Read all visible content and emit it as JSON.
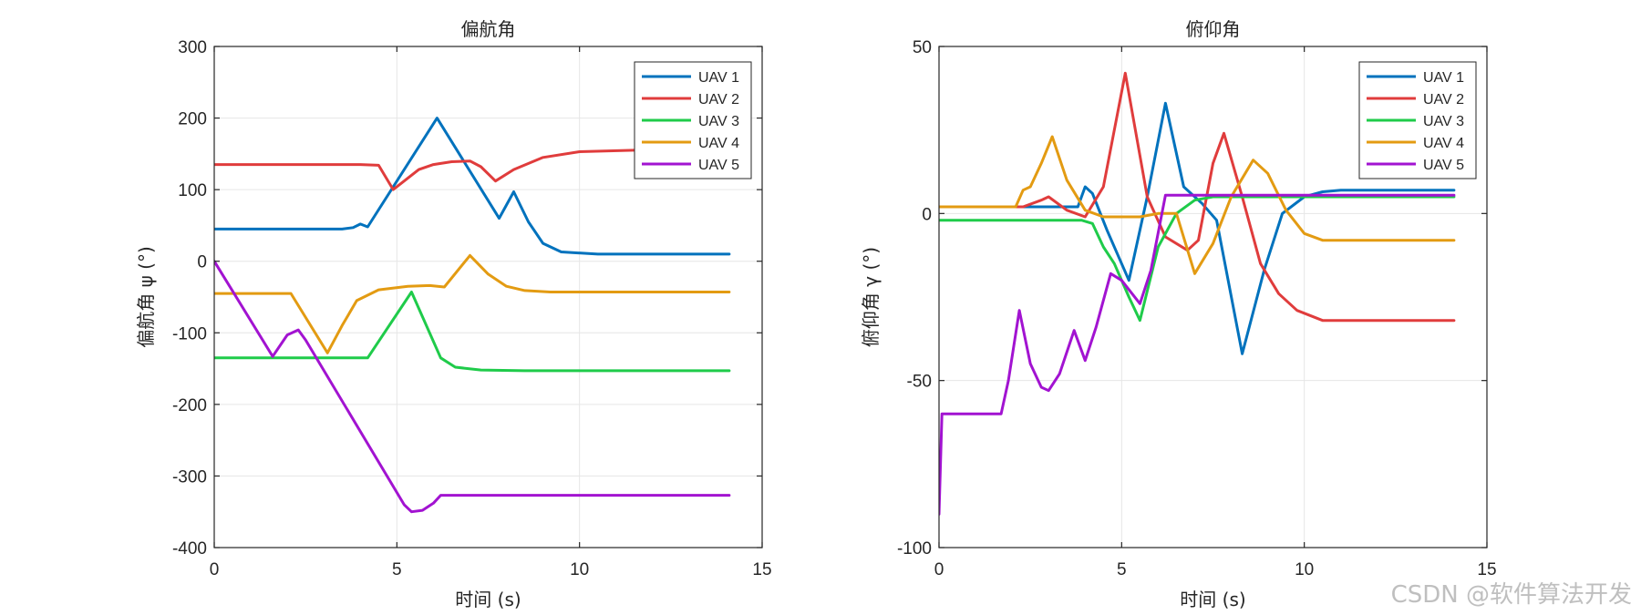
{
  "watermark": "CSDN @软件算法开发",
  "colors": {
    "UAV 1": "#0072BD",
    "UAV 2": "#E03C3C",
    "UAV 3": "#1FCB4A",
    "UAV 4": "#E39B12",
    "UAV 5": "#A213D1"
  },
  "chart_data": [
    {
      "type": "line",
      "title": "偏航角",
      "xlabel": "时间 (s)",
      "ylabel": "偏航角 ψ (°)",
      "xlim": [
        0,
        15
      ],
      "ylim": [
        -400,
        300
      ],
      "xticks": [
        0,
        5,
        10,
        15
      ],
      "yticks": [
        -400,
        -300,
        -200,
        -100,
        0,
        100,
        200,
        300
      ],
      "grid": true,
      "legend": "top-right",
      "series": [
        {
          "name": "UAV 1",
          "x": [
            0,
            3.5,
            3.8,
            4.0,
            4.2,
            6.1,
            7.8,
            8.2,
            8.6,
            9.0,
            9.5,
            10.5,
            14.1
          ],
          "y": [
            45,
            45,
            47,
            52,
            48,
            200,
            60,
            97,
            55,
            25,
            13,
            10,
            10
          ]
        },
        {
          "name": "UAV 2",
          "x": [
            0,
            4.0,
            4.5,
            4.9,
            5.2,
            5.6,
            6.0,
            6.5,
            7.0,
            7.3,
            7.7,
            8.2,
            9.0,
            10.0,
            11.5,
            14.1
          ],
          "y": [
            135,
            135,
            134,
            100,
            112,
            128,
            135,
            139,
            140,
            132,
            112,
            128,
            145,
            153,
            155,
            155
          ]
        },
        {
          "name": "UAV 3",
          "x": [
            0,
            4.2,
            5.4,
            6.2,
            6.6,
            7.3,
            8.5,
            14.1
          ],
          "y": [
            -135,
            -135,
            -43,
            -135,
            -148,
            -152,
            -153,
            -153
          ]
        },
        {
          "name": "UAV 4",
          "x": [
            0,
            2.1,
            3.1,
            3.5,
            3.9,
            4.5,
            5.3,
            5.9,
            6.3,
            7.0,
            7.5,
            8.0,
            8.5,
            9.2,
            14.1
          ],
          "y": [
            -45,
            -45,
            -128,
            -90,
            -55,
            -40,
            -35,
            -34,
            -36,
            8,
            -18,
            -35,
            -41,
            -43,
            -43
          ]
        },
        {
          "name": "UAV 5",
          "x": [
            0,
            1.6,
            2.0,
            2.3,
            2.5,
            5.2,
            5.4,
            5.7,
            6.0,
            6.2,
            14.1
          ],
          "y": [
            0,
            -133,
            -103,
            -96,
            -110,
            -340,
            -350,
            -348,
            -338,
            -327,
            -327
          ]
        }
      ]
    },
    {
      "type": "line",
      "title": "俯仰角",
      "xlabel": "时间 (s)",
      "ylabel": "俯仰角 γ (°)",
      "xlim": [
        0,
        15
      ],
      "ylim": [
        -100,
        50
      ],
      "xticks": [
        0,
        5,
        10,
        15
      ],
      "yticks": [
        -100,
        -50,
        0,
        50
      ],
      "grid": true,
      "legend": "top-right",
      "series": [
        {
          "name": "UAV 1",
          "x": [
            0,
            3.4,
            3.8,
            4.0,
            4.2,
            4.6,
            5.2,
            5.7,
            6.2,
            6.7,
            7.2,
            7.6,
            8.3,
            8.9,
            9.4,
            10.0,
            10.5,
            11.0,
            12.0,
            14.1
          ],
          "y": [
            2,
            2,
            2,
            8,
            6,
            -5,
            -20,
            5,
            33,
            8,
            3,
            -2,
            -42,
            -17,
            0,
            5,
            6.5,
            7,
            7,
            7
          ]
        },
        {
          "name": "UAV 2",
          "x": [
            0,
            2.3,
            2.8,
            3.0,
            3.5,
            4.0,
            4.5,
            5.1,
            5.7,
            6.2,
            6.8,
            7.1,
            7.5,
            7.8,
            8.3,
            8.8,
            9.3,
            9.8,
            10.5,
            14.1
          ],
          "y": [
            2,
            2,
            4,
            5,
            1,
            -1,
            8,
            42,
            5,
            -7,
            -11,
            -8,
            15,
            24,
            5,
            -15,
            -24,
            -29,
            -32,
            -32
          ]
        },
        {
          "name": "UAV 3",
          "x": [
            0,
            3.9,
            4.2,
            4.5,
            4.8,
            5.2,
            5.5,
            6.0,
            6.5,
            7.0,
            7.5,
            14.1
          ],
          "y": [
            -2,
            -2,
            -3,
            -10,
            -15,
            -25,
            -32,
            -10,
            0,
            4,
            5,
            5
          ]
        },
        {
          "name": "UAV 4",
          "x": [
            0,
            2.1,
            2.3,
            2.5,
            2.8,
            3.1,
            3.5,
            4.0,
            4.5,
            5.0,
            5.5,
            6.0,
            6.5,
            7.0,
            7.5,
            8.0,
            8.6,
            9.0,
            9.5,
            10.0,
            10.5,
            14.1
          ],
          "y": [
            2,
            2,
            7,
            8,
            15,
            23,
            10,
            1,
            -1,
            -1,
            -1,
            0,
            0,
            -18,
            -9,
            5,
            16,
            12,
            1,
            -6,
            -8,
            -8
          ]
        },
        {
          "name": "UAV 5",
          "x": [
            0,
            0.08,
            1.7,
            1.9,
            2.2,
            2.5,
            2.8,
            3.0,
            3.3,
            3.7,
            4.0,
            4.3,
            4.7,
            5.0,
            5.5,
            5.8,
            6.2,
            14.1
          ],
          "y": [
            -90,
            -60,
            -60,
            -50,
            -29,
            -45,
            -52,
            -53,
            -48,
            -35,
            -44,
            -34,
            -18,
            -20,
            -27,
            -17,
            5.5,
            5.5
          ]
        }
      ]
    }
  ]
}
